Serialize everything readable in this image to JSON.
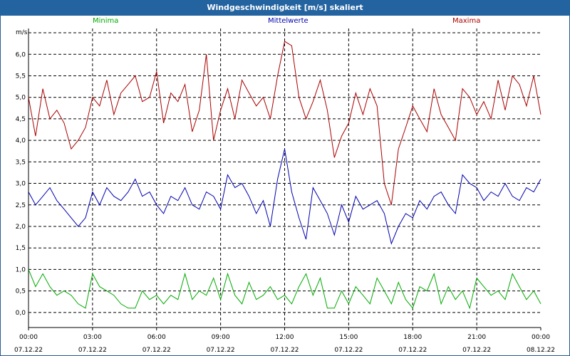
{
  "title": "Windgeschwindigkeit [m/s] skaliert",
  "colors": {
    "min": "#00aa00",
    "mean": "#0000b0",
    "max": "#aa0000",
    "titlebar": "#2363a0"
  },
  "chart_data": {
    "type": "line",
    "title": "Windgeschwindigkeit [m/s] skaliert",
    "ylabel": "m/s",
    "ylim": [
      -0.35,
      6.6
    ],
    "yticks": [
      "0,0",
      "0,5",
      "1,0",
      "1,5",
      "2,0",
      "2,5",
      "3,0",
      "3,5",
      "4,0",
      "4,5",
      "5,0",
      "5,5",
      "6,0"
    ],
    "xticks": [
      {
        "time": "00:00",
        "date": "07.12.22"
      },
      {
        "time": "03:00",
        "date": "07.12.22"
      },
      {
        "time": "06:00",
        "date": "07.12.22"
      },
      {
        "time": "09:00",
        "date": "07.12.22"
      },
      {
        "time": "12:00",
        "date": "07.12.22"
      },
      {
        "time": "15:00",
        "date": "07.12.22"
      },
      {
        "time": "18:00",
        "date": "07.12.22"
      },
      {
        "time": "21:00",
        "date": "07.12.22"
      },
      {
        "time": "00:00",
        "date": "08.12.22"
      }
    ],
    "grid": true,
    "x_hours": [
      0,
      0.33,
      0.67,
      1,
      1.33,
      1.67,
      2,
      2.33,
      2.67,
      3,
      3.33,
      3.67,
      4,
      4.33,
      4.67,
      5,
      5.33,
      5.67,
      6,
      6.33,
      6.67,
      7,
      7.33,
      7.67,
      8,
      8.33,
      8.67,
      9,
      9.33,
      9.67,
      10,
      10.33,
      10.67,
      11,
      11.33,
      11.67,
      12,
      12.33,
      12.67,
      13,
      13.33,
      13.67,
      14,
      14.33,
      14.67,
      15,
      15.33,
      15.67,
      16,
      16.33,
      16.67,
      17,
      17.33,
      17.67,
      18,
      18.33,
      18.67,
      19,
      19.33,
      19.67,
      20,
      20.33,
      20.67,
      21,
      21.33,
      21.67,
      22,
      22.33,
      22.67,
      23,
      23.33,
      23.67,
      24
    ],
    "series": [
      {
        "name": "Minima",
        "values": [
          1.0,
          0.6,
          0.9,
          0.6,
          0.4,
          0.5,
          0.4,
          0.2,
          0.1,
          0.9,
          0.6,
          0.5,
          0.4,
          0.2,
          0.1,
          0.1,
          0.5,
          0.3,
          0.4,
          0.2,
          0.4,
          0.3,
          0.9,
          0.3,
          0.5,
          0.4,
          0.8,
          0.3,
          0.9,
          0.4,
          0.2,
          0.7,
          0.3,
          0.4,
          0.6,
          0.3,
          0.4,
          0.2,
          0.6,
          0.9,
          0.4,
          0.8,
          0.1,
          0.1,
          0.5,
          0.2,
          0.6,
          0.4,
          0.2,
          0.8,
          0.5,
          0.2,
          0.7,
          0.3,
          0.1,
          0.6,
          0.5,
          0.9,
          0.2,
          0.6,
          0.3,
          0.5,
          0.1,
          0.8,
          0.6,
          0.4,
          0.5,
          0.3,
          0.9,
          0.6,
          0.3,
          0.5,
          0.2
        ]
      },
      {
        "name": "Mittelwerte",
        "values": [
          2.8,
          2.5,
          2.7,
          2.9,
          2.6,
          2.4,
          2.2,
          2.0,
          2.2,
          2.8,
          2.5,
          2.9,
          2.7,
          2.6,
          2.8,
          3.1,
          2.7,
          2.8,
          2.5,
          2.3,
          2.7,
          2.6,
          2.9,
          2.5,
          2.4,
          2.8,
          2.7,
          2.4,
          3.2,
          2.9,
          3.0,
          2.7,
          2.3,
          2.6,
          2.0,
          3.1,
          3.8,
          2.8,
          2.2,
          1.7,
          2.9,
          2.6,
          2.3,
          1.8,
          2.5,
          2.1,
          2.7,
          2.4,
          2.5,
          2.6,
          2.3,
          1.6,
          2.0,
          2.3,
          2.2,
          2.6,
          2.4,
          2.7,
          2.8,
          2.5,
          2.3,
          3.2,
          3.0,
          2.9,
          2.6,
          2.8,
          2.7,
          3.0,
          2.7,
          2.6,
          2.9,
          2.8,
          3.1
        ]
      },
      {
        "name": "Maxima",
        "values": [
          5.0,
          4.1,
          5.2,
          4.5,
          4.7,
          4.4,
          3.8,
          4.0,
          4.3,
          5.0,
          4.8,
          5.4,
          4.6,
          5.1,
          5.3,
          5.5,
          4.9,
          5.0,
          5.6,
          4.4,
          5.1,
          4.9,
          5.3,
          4.2,
          4.7,
          6.0,
          4.0,
          4.7,
          5.2,
          4.5,
          5.4,
          5.1,
          4.8,
          5.0,
          4.5,
          5.5,
          6.3,
          6.2,
          5.0,
          4.5,
          4.9,
          5.4,
          4.7,
          3.6,
          4.1,
          4.4,
          5.1,
          4.6,
          5.2,
          4.8,
          3.0,
          2.5,
          3.8,
          4.3,
          4.8,
          4.5,
          4.2,
          5.2,
          4.6,
          4.3,
          4.0,
          5.2,
          5.0,
          4.6,
          4.9,
          4.5,
          5.4,
          4.7,
          5.5,
          5.3,
          4.8,
          5.5,
          4.6
        ]
      }
    ]
  }
}
